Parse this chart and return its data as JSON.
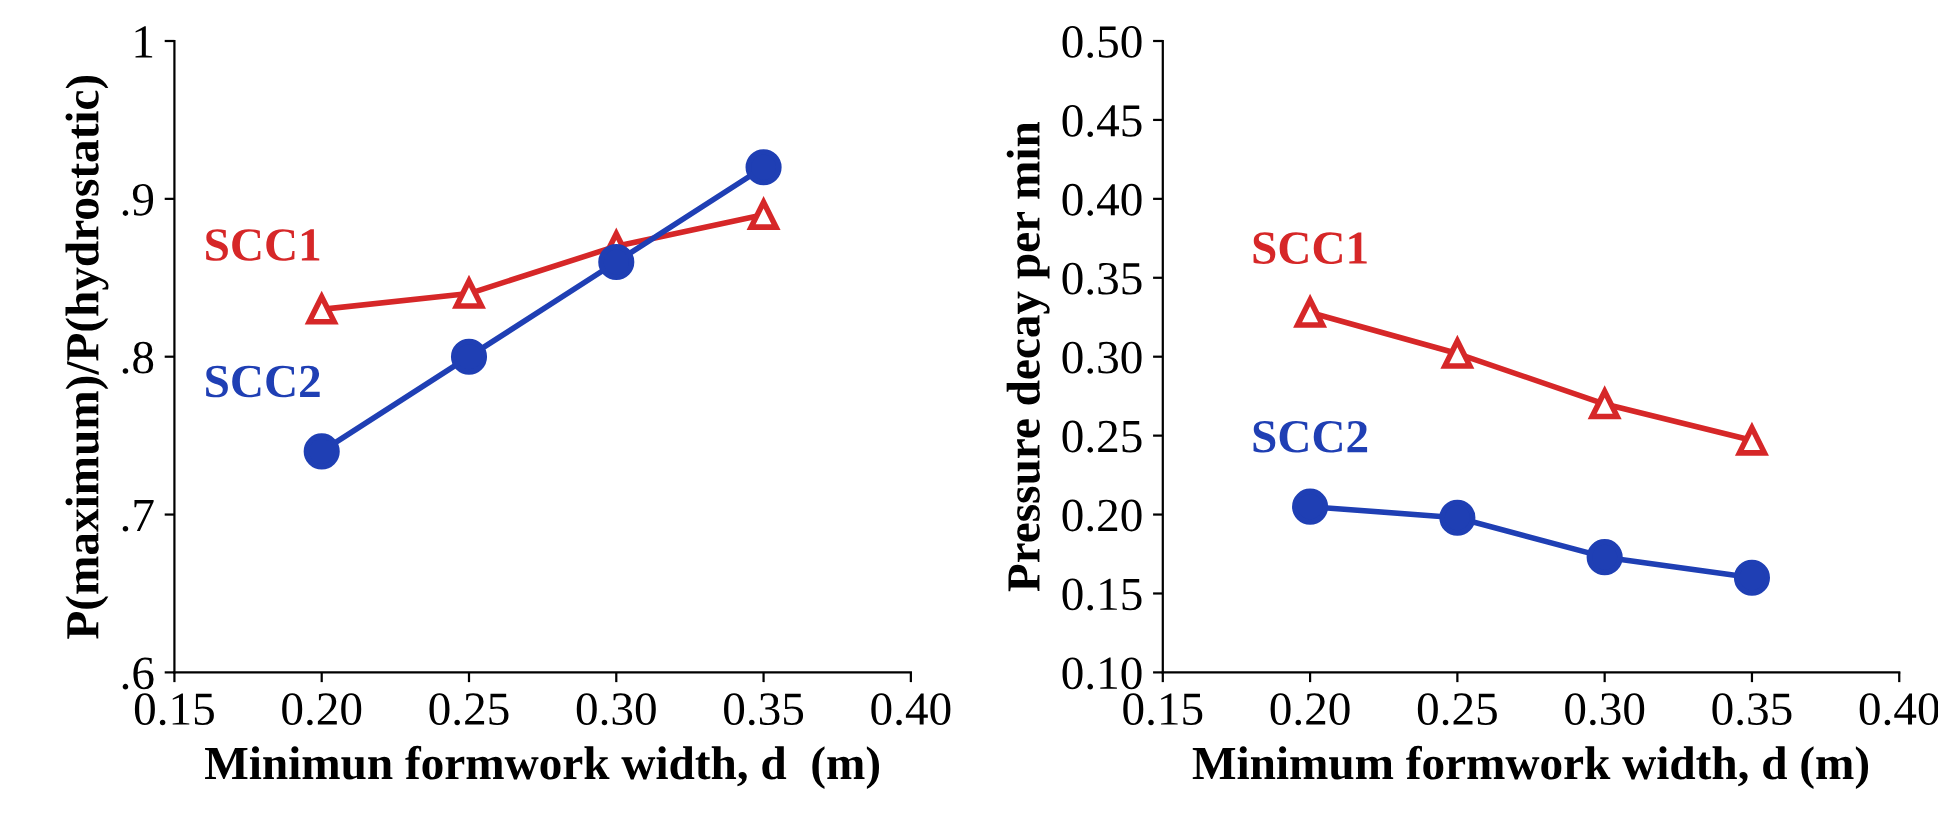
{
  "chart_data": [
    {
      "type": "line",
      "xlabel": "Minimun formwork width, d  (m)",
      "ylabel": "P(maximum)/P(hydrostatic)",
      "x": [
        0.2,
        0.25,
        0.3,
        0.35
      ],
      "xlim": [
        0.15,
        0.4
      ],
      "xticks": [
        0.15,
        {
          "value": 0.2,
          "label": "0.20"
        },
        0.25,
        {
          "value": 0.3,
          "label": "0.30"
        },
        0.35,
        {
          "value": 0.4,
          "label": "0.40"
        }
      ],
      "ylim": [
        0.6,
        1.0
      ],
      "yticks": [
        {
          "value": 0.6,
          "label": ".6"
        },
        {
          "value": 0.7,
          "label": ".7"
        },
        {
          "value": 0.8,
          "label": ".8"
        },
        {
          "value": 0.9,
          "label": ".9"
        },
        {
          "value": 1.0,
          "label": "1"
        }
      ],
      "grid": false,
      "series": [
        {
          "name": "SCC1",
          "color": "#d62728",
          "marker": "triangle",
          "values": [
            0.83,
            0.84,
            0.87,
            0.89
          ]
        },
        {
          "name": "SCC2",
          "color": "#1f3fb4",
          "marker": "circle",
          "values": [
            0.74,
            0.8,
            0.86,
            0.92
          ]
        }
      ]
    },
    {
      "type": "line",
      "xlabel": "Minimum formwork width, d (m)",
      "ylabel": "Pressure decay per min",
      "x": [
        0.2,
        0.25,
        0.3,
        0.35
      ],
      "xlim": [
        0.15,
        0.4
      ],
      "xticks": [
        0.15,
        {
          "value": 0.2,
          "label": "0.20"
        },
        0.25,
        {
          "value": 0.3,
          "label": "0.30"
        },
        0.35,
        {
          "value": 0.4,
          "label": "0.40"
        }
      ],
      "ylim": [
        0.1,
        0.5
      ],
      "yticks": [
        {
          "value": 0.1,
          "label": "0.10"
        },
        0.15,
        {
          "value": 0.2,
          "label": "0.20"
        },
        0.25,
        {
          "value": 0.3,
          "label": "0.30"
        },
        0.35,
        {
          "value": 0.4,
          "label": "0.40"
        },
        0.45,
        {
          "value": 0.5,
          "label": "0.50"
        }
      ],
      "grid": false,
      "series": [
        {
          "name": "SCC1",
          "color": "#d62728",
          "marker": "triangle",
          "values": [
            0.328,
            0.302,
            0.27,
            0.247
          ]
        },
        {
          "name": "SCC2",
          "color": "#1f3fb4",
          "marker": "circle",
          "values": [
            0.205,
            0.198,
            0.173,
            0.16
          ]
        }
      ]
    }
  ]
}
